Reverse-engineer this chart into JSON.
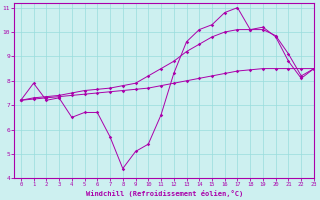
{
  "xlabel": "Windchill (Refroidissement éolien,°C)",
  "background_color": "#cdf0f0",
  "line_color": "#aa00aa",
  "grid_color": "#99dddd",
  "axis_color": "#aa00aa",
  "tick_color": "#aa00aa",
  "xlim": [
    -0.5,
    23
  ],
  "ylim": [
    4,
    11.2
  ],
  "yticks": [
    4,
    5,
    6,
    7,
    8,
    9,
    10,
    11
  ],
  "xticks": [
    0,
    1,
    2,
    3,
    4,
    5,
    6,
    7,
    8,
    9,
    10,
    11,
    12,
    13,
    14,
    15,
    16,
    17,
    18,
    19,
    20,
    21,
    22,
    23
  ],
  "hours": [
    0,
    1,
    2,
    3,
    4,
    5,
    6,
    7,
    8,
    9,
    10,
    11,
    12,
    13,
    14,
    15,
    16,
    17,
    18,
    19,
    20,
    21,
    22,
    23
  ],
  "series1": [
    7.2,
    7.9,
    7.2,
    7.3,
    6.5,
    6.7,
    6.7,
    5.7,
    4.4,
    5.1,
    5.4,
    6.6,
    8.3,
    9.6,
    10.1,
    10.3,
    10.8,
    11.0,
    10.1,
    10.2,
    9.8,
    8.8,
    8.1,
    8.5
  ],
  "series2": [
    7.2,
    7.25,
    7.3,
    7.35,
    7.4,
    7.45,
    7.5,
    7.55,
    7.6,
    7.65,
    7.7,
    7.8,
    7.9,
    8.0,
    8.1,
    8.2,
    8.3,
    8.4,
    8.45,
    8.5,
    8.5,
    8.5,
    8.5,
    8.5
  ],
  "series3": [
    7.2,
    7.3,
    7.35,
    7.4,
    7.5,
    7.6,
    7.65,
    7.7,
    7.8,
    7.9,
    8.2,
    8.5,
    8.8,
    9.2,
    9.5,
    9.8,
    10.0,
    10.1,
    10.1,
    10.1,
    9.85,
    9.1,
    8.2,
    8.5
  ]
}
